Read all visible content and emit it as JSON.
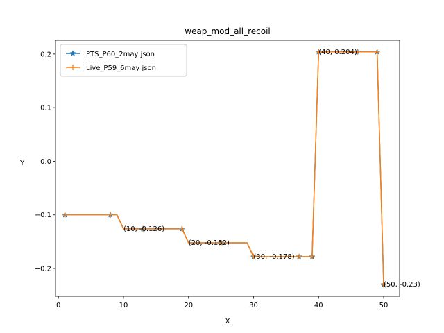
{
  "chart_data": {
    "type": "line",
    "title": "weap_mod_all_recoil",
    "xlabel": "X",
    "ylabel": "Y",
    "xlim": [
      -0.45,
      52.45
    ],
    "ylim": [
      -0.2517,
      0.2257
    ],
    "x_ticks": [
      0,
      10,
      20,
      30,
      40,
      50
    ],
    "x_tick_labels": [
      "0",
      "10",
      "20",
      "30",
      "40",
      "50"
    ],
    "y_ticks": [
      -0.2,
      -0.1,
      0.0,
      0.1,
      0.2
    ],
    "y_tick_labels": [
      "−0.2",
      "−0.1",
      "0.0",
      "0.1",
      "0.2"
    ],
    "legend_placement": "upper-left",
    "grid": false,
    "x": [
      1,
      2,
      3,
      4,
      5,
      6,
      7,
      8,
      9,
      10,
      11,
      12,
      13,
      14,
      15,
      16,
      17,
      18,
      19,
      20,
      21,
      22,
      23,
      24,
      25,
      26,
      27,
      28,
      29,
      30,
      31,
      32,
      33,
      34,
      35,
      36,
      37,
      38,
      39,
      40,
      41,
      42,
      43,
      44,
      45,
      46,
      47,
      48,
      49,
      50
    ],
    "series": [
      {
        "name": "PTS_P60_2may json",
        "color": "#1f77b4",
        "marker": "star",
        "marker_x": [
          1,
          8,
          13,
          19,
          25,
          30,
          37,
          39,
          40,
          46,
          49,
          50
        ],
        "values": [
          -0.1,
          -0.1,
          -0.1,
          -0.1,
          -0.1,
          -0.1,
          -0.1,
          -0.1,
          -0.1,
          -0.126,
          -0.126,
          -0.126,
          -0.126,
          -0.126,
          -0.126,
          -0.126,
          -0.126,
          -0.126,
          -0.126,
          -0.152,
          -0.152,
          -0.152,
          -0.152,
          -0.152,
          -0.152,
          -0.152,
          -0.152,
          -0.152,
          -0.152,
          -0.178,
          -0.178,
          -0.178,
          -0.178,
          -0.178,
          -0.178,
          -0.178,
          -0.178,
          -0.178,
          -0.178,
          0.204,
          0.204,
          0.204,
          0.204,
          0.204,
          0.204,
          0.204,
          0.204,
          0.204,
          0.204,
          -0.23
        ]
      },
      {
        "name": "Live_P59_6may json",
        "color": "#ff7f0e",
        "marker": "plus",
        "marker_x": [
          1,
          8,
          13,
          19,
          25,
          30,
          37,
          39,
          40,
          46,
          49,
          50
        ],
        "values": [
          -0.1,
          -0.1,
          -0.1,
          -0.1,
          -0.1,
          -0.1,
          -0.1,
          -0.1,
          -0.1,
          -0.126,
          -0.126,
          -0.126,
          -0.126,
          -0.126,
          -0.126,
          -0.126,
          -0.126,
          -0.126,
          -0.126,
          -0.152,
          -0.152,
          -0.152,
          -0.152,
          -0.152,
          -0.152,
          -0.152,
          -0.152,
          -0.152,
          -0.152,
          -0.178,
          -0.178,
          -0.178,
          -0.178,
          -0.178,
          -0.178,
          -0.178,
          -0.178,
          -0.178,
          -0.178,
          0.204,
          0.204,
          0.204,
          0.204,
          0.204,
          0.204,
          0.204,
          0.204,
          0.204,
          0.204,
          -0.23
        ]
      }
    ],
    "annotations": [
      {
        "x": 10,
        "y": -0.126,
        "text": "(10, -0.126)"
      },
      {
        "x": 20,
        "y": -0.152,
        "text": "(20, -0.152)"
      },
      {
        "x": 30,
        "y": -0.178,
        "text": "(30, -0.178)"
      },
      {
        "x": 40,
        "y": 0.204,
        "text": "(40, 0.204)"
      },
      {
        "x": 50,
        "y": -0.23,
        "text": "(50, -0.23)"
      }
    ]
  }
}
